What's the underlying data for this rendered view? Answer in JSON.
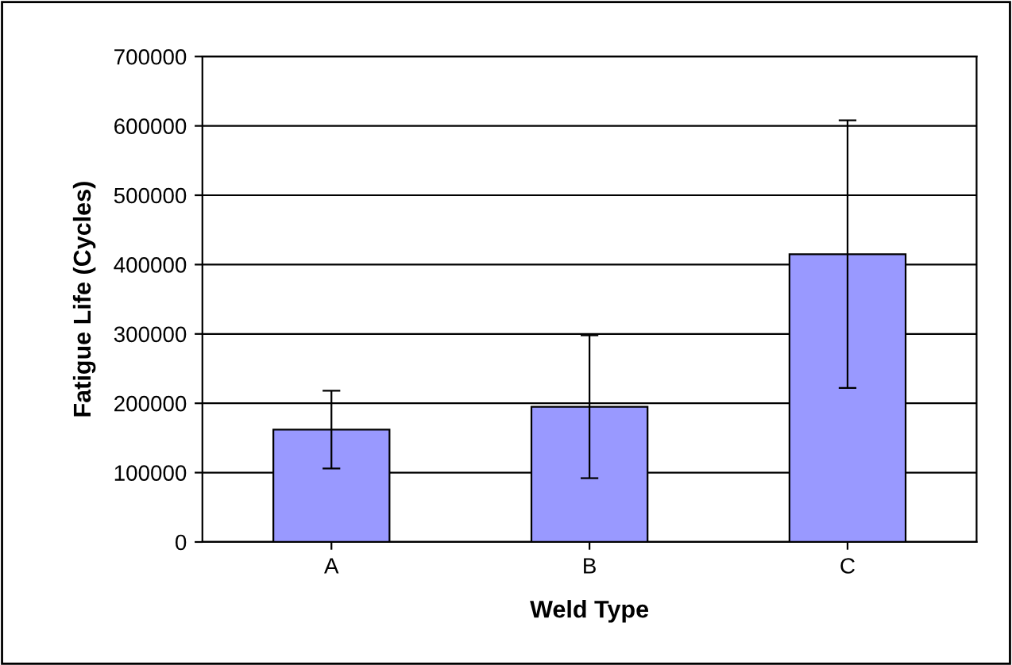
{
  "chart_data": {
    "type": "bar",
    "xlabel": "Weld Type",
    "ylabel": "Fatigue Life (Cycles)",
    "categories": [
      "A",
      "B",
      "C"
    ],
    "values": [
      162000,
      195000,
      415000
    ],
    "errors": [
      [
        106000,
        218000
      ],
      [
        92000,
        298000
      ],
      [
        222000,
        608000
      ]
    ],
    "color": "#9999ff",
    "ylim": [
      0,
      700000
    ],
    "yticks": [
      0,
      100000,
      200000,
      300000,
      400000,
      500000,
      600000,
      700000
    ],
    "grid": "y",
    "legend": false
  }
}
